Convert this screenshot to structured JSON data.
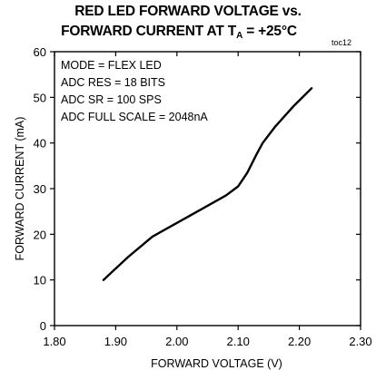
{
  "chart_data": {
    "type": "line",
    "title_line1": "RED LED FORWARD VOLTAGE vs.",
    "title_line2_prefix": "FORWARD CURRENT AT T",
    "title_line2_sub": "A",
    "title_line2_suffix": " = +25°C",
    "figure_tag": "toc12",
    "xlabel": "FORWARD VOLTAGE (V)",
    "ylabel": "FORWARD CURRENT (mA)",
    "xlim": [
      1.8,
      2.3
    ],
    "ylim": [
      0,
      60
    ],
    "xticks": [
      "1.80",
      "1.90",
      "2.00",
      "2.10",
      "2.20",
      "2.30"
    ],
    "yticks": [
      "0",
      "10",
      "20",
      "30",
      "40",
      "50",
      "60"
    ],
    "grid": false,
    "annotations": [
      "MODE = FLEX LED",
      "ADC RES = 18 BITS",
      "ADC SR = 100 SPS",
      "ADC FULL SCALE = 2048nA"
    ],
    "series": [
      {
        "x": [
          1.88,
          1.92,
          1.96,
          2.0,
          2.04,
          2.08,
          2.1,
          2.115,
          2.13,
          2.14,
          2.16,
          2.19,
          2.22
        ],
        "y": [
          10,
          15,
          19.5,
          22.5,
          25.5,
          28.5,
          30.5,
          33.5,
          37.5,
          40,
          43.5,
          48,
          52
        ]
      }
    ]
  }
}
